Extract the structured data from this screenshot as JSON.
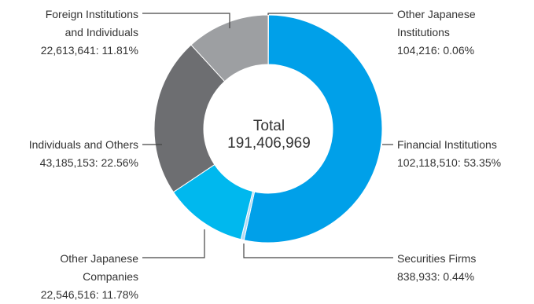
{
  "chart_data": {
    "type": "pie",
    "donut": true,
    "center_label": "Total",
    "center_value": "191,406,969",
    "unit": "shares",
    "total": 191406969,
    "colors": {
      "financial": "#00a0e9",
      "securities": "#b3d9f2",
      "companies": "#00b8ee",
      "individuals": "#6d6e71",
      "foreign": "#9d9fa2",
      "other_institutions": "#00a0e9",
      "leader": "#444444"
    },
    "slices": [
      {
        "key": "other_institutions",
        "label_lines": [
          "Other Japanese",
          "Institutions"
        ],
        "value_text": "104,216: 0.06%",
        "value": 104216,
        "percent": 0.06
      },
      {
        "key": "financial",
        "label_lines": [
          "Financial Institutions"
        ],
        "value_text": "102,118,510: 53.35%",
        "value": 102118510,
        "percent": 53.35
      },
      {
        "key": "securities",
        "label_lines": [
          "Securities Firms"
        ],
        "value_text": "838,933: 0.44%",
        "value": 838933,
        "percent": 0.44
      },
      {
        "key": "companies",
        "label_lines": [
          "Other Japanese",
          "Companies"
        ],
        "value_text": "22,546,516: 11.78%",
        "value": 22546516,
        "percent": 11.78
      },
      {
        "key": "individuals",
        "label_lines": [
          "Individuals and Others"
        ],
        "value_text": "43,185,153: 22.56%",
        "value": 43185153,
        "percent": 22.56
      },
      {
        "key": "foreign",
        "label_lines": [
          "Foreign Institutions",
          "and Individuals"
        ],
        "value_text": "22,613,641: 11.81%",
        "value": 22613641,
        "percent": 11.81
      }
    ]
  }
}
